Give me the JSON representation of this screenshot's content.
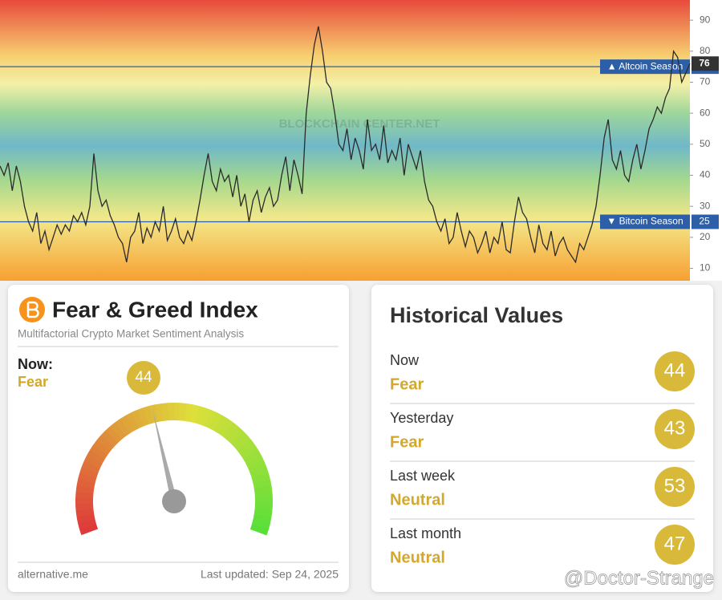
{
  "chart_data": {
    "type": "line",
    "watermark": "BLOCKCHAIN CENTER.NET",
    "series": [
      {
        "name": "Altcoin Season Index",
        "color": "#2a2a2a",
        "values": [
          43,
          40,
          44,
          35,
          43,
          38,
          30,
          25,
          22,
          28,
          18,
          22,
          16,
          20,
          24,
          21,
          24,
          22,
          27,
          25,
          28,
          24,
          30,
          47,
          35,
          30,
          32,
          27,
          24,
          20,
          18,
          12,
          20,
          22,
          28,
          18,
          23,
          20,
          25,
          22,
          30,
          19,
          22,
          26,
          20,
          18,
          22,
          19,
          25,
          32,
          40,
          47,
          38,
          35,
          42,
          38,
          40,
          33,
          40,
          30,
          34,
          25,
          32,
          35,
          28,
          33,
          36,
          30,
          32,
          40,
          46,
          35,
          45,
          40,
          34,
          60,
          72,
          82,
          88,
          80,
          70,
          68,
          60,
          50,
          48,
          55,
          45,
          52,
          48,
          42,
          58,
          48,
          50,
          45,
          56,
          44,
          48,
          45,
          52,
          40,
          50,
          46,
          42,
          48,
          38,
          32,
          30,
          25,
          22,
          26,
          18,
          20,
          28,
          22,
          17,
          22,
          20,
          15,
          18,
          22,
          15,
          20,
          18,
          25,
          16,
          15,
          25,
          33,
          28,
          26,
          20,
          15,
          24,
          18,
          16,
          22,
          14,
          18,
          20,
          16,
          14,
          12,
          18,
          16,
          20,
          24,
          30,
          40,
          52,
          58,
          45,
          42,
          48,
          40,
          38,
          45,
          50,
          42,
          48,
          55,
          58,
          62,
          60,
          65,
          68,
          80,
          78,
          70,
          73,
          76
        ]
      }
    ],
    "reference_lines": [
      {
        "label": "▲ Altcoin Season",
        "value": 75,
        "color": "#2d5fa8"
      },
      {
        "label": "▼ Bitcoin Season",
        "value": 25,
        "color": "#2d5fa8"
      }
    ],
    "ylim": [
      6,
      96.5
    ],
    "yticks": [
      10,
      20,
      30,
      40,
      50,
      60,
      70,
      80,
      90
    ]
  },
  "fear_greed": {
    "title": "Fear & Greed Index",
    "subtitle": "Multifactorial Crypto Market Sentiment Analysis",
    "now_label": "Now:",
    "classification": "Fear",
    "value": 44,
    "gauge_lim": [
      0,
      100
    ],
    "source": "alternative.me",
    "updated": "Last updated: Sep 24, 2025"
  },
  "historical": {
    "title": "Historical Values",
    "items": [
      {
        "label": "Now",
        "classification": "Fear",
        "value": 44
      },
      {
        "label": "Yesterday",
        "classification": "Fear",
        "value": 43
      },
      {
        "label": "Last week",
        "classification": "Neutral",
        "value": 53
      },
      {
        "label": "Last month",
        "classification": "Neutral",
        "value": 47
      }
    ]
  },
  "watermark": "@Doctor-Strange"
}
